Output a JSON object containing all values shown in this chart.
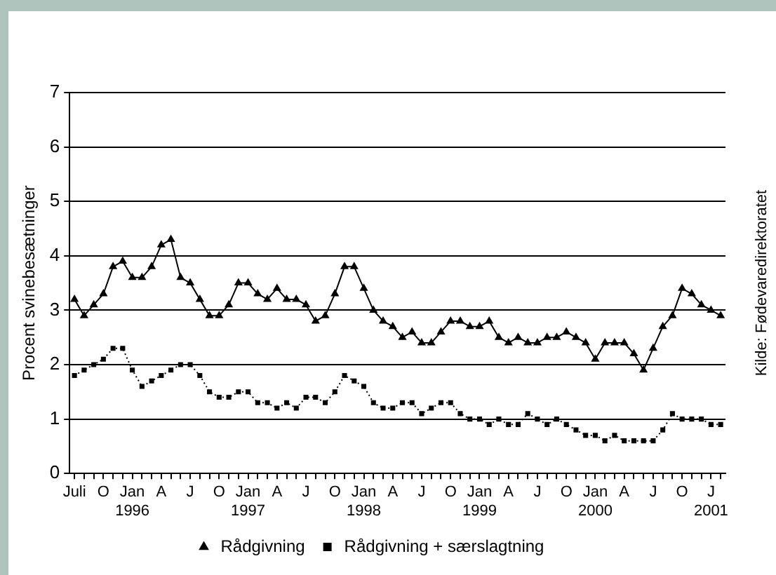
{
  "chart_data": {
    "type": "line",
    "ylabel": "Procent svinebesætninger",
    "annotations": [
      "Kilde: Fødevaredirektoratet"
    ],
    "categories": [
      "Juli",
      null,
      null,
      "O",
      null,
      null,
      "Jan 1996",
      null,
      null,
      "A",
      null,
      null,
      "J",
      null,
      null,
      "O",
      null,
      null,
      "Jan 1997",
      null,
      null,
      "A",
      null,
      null,
      "J",
      null,
      null,
      "O",
      null,
      null,
      "Jan 1998",
      null,
      null,
      "A",
      null,
      null,
      "J",
      null,
      null,
      "O",
      null,
      null,
      "Jan 1999",
      null,
      null,
      "A",
      null,
      null,
      "J",
      null,
      null,
      "O",
      null,
      null,
      "Jan 2000",
      null,
      null,
      "A",
      null,
      null,
      "J",
      null,
      null,
      "O",
      null,
      null,
      "J 2001",
      null
    ],
    "series": [
      {
        "name": "Rådgivning",
        "color": "#000000",
        "marker": "triangle",
        "line_style": "solid",
        "values": [
          3.2,
          2.9,
          3.1,
          3.3,
          3.8,
          3.9,
          3.6,
          3.6,
          3.8,
          4.2,
          4.3,
          3.6,
          3.5,
          3.2,
          2.9,
          2.9,
          3.1,
          3.5,
          3.5,
          3.3,
          3.2,
          3.4,
          3.2,
          3.2,
          3.1,
          2.8,
          2.9,
          3.3,
          3.8,
          3.8,
          3.4,
          3.0,
          2.8,
          2.7,
          2.5,
          2.6,
          2.4,
          2.4,
          2.6,
          2.8,
          2.8,
          2.7,
          2.7,
          2.8,
          2.5,
          2.4,
          2.5,
          2.4,
          2.4,
          2.5,
          2.5,
          2.6,
          2.5,
          2.4,
          2.1,
          2.4,
          2.4,
          2.4,
          2.2,
          1.9,
          2.3,
          2.7,
          2.9,
          3.4,
          3.3,
          3.1,
          3.0,
          2.9
        ]
      },
      {
        "name": "Rådgivning + særslagtning",
        "color": "#000000",
        "marker": "square",
        "line_style": "dotted",
        "values": [
          1.8,
          1.9,
          2.0,
          2.1,
          2.3,
          2.3,
          1.9,
          1.6,
          1.7,
          1.8,
          1.9,
          2.0,
          2.0,
          1.8,
          1.5,
          1.4,
          1.4,
          1.5,
          1.5,
          1.3,
          1.3,
          1.2,
          1.3,
          1.2,
          1.4,
          1.4,
          1.3,
          1.5,
          1.8,
          1.7,
          1.6,
          1.3,
          1.2,
          1.2,
          1.3,
          1.3,
          1.1,
          1.2,
          1.3,
          1.3,
          1.1,
          1.0,
          1.0,
          0.9,
          1.0,
          0.9,
          0.9,
          1.1,
          1.0,
          0.9,
          1.0,
          0.9,
          0.8,
          0.7,
          0.7,
          0.6,
          0.7,
          0.6,
          0.6,
          0.6,
          0.6,
          0.8,
          1.1,
          1.0,
          1.0,
          1.0,
          0.9,
          0.9
        ]
      }
    ],
    "ylim": [
      0,
      7
    ],
    "yticks": [
      0,
      1,
      2,
      3,
      4,
      5,
      6,
      7
    ],
    "grid": "y",
    "legend": "bottom"
  }
}
